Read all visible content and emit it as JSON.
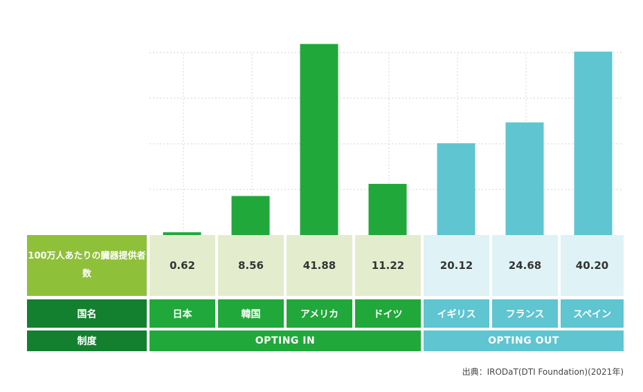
{
  "chart_data": {
    "type": "bar",
    "categories": [
      "日本",
      "韓国",
      "アメリカ",
      "ドイツ",
      "イギリス",
      "フランス",
      "スペイン"
    ],
    "values": [
      0.62,
      8.56,
      41.88,
      11.22,
      20.12,
      24.68,
      40.2
    ],
    "value_labels": [
      "0.62",
      "8.56",
      "41.88",
      "11.22",
      "20.12",
      "24.68",
      "40.20"
    ],
    "groups": [
      "OPTING IN",
      "OPTING IN",
      "OPTING IN",
      "OPTING IN",
      "OPTING OUT",
      "OPTING OUT",
      "OPTING OUT"
    ],
    "ylim": [
      0,
      45
    ],
    "grid": true,
    "colors": {
      "opting_in": "#21a83a",
      "opting_out": "#5ec5d1"
    }
  },
  "table": {
    "value_header": "100万人あたりの臓器提供者数",
    "country_header": "国名",
    "system_header": "制度",
    "system_in": "OPTING IN",
    "system_out": "OPTING OUT"
  },
  "source": "出典：IRODaT(DTI Foundation)(2021年)"
}
